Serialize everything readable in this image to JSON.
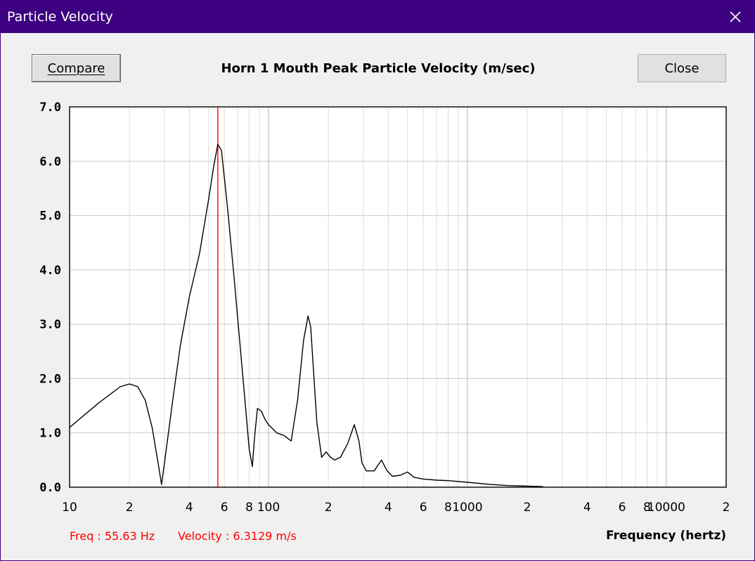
{
  "window": {
    "title": "Particle Velocity",
    "close_icon": "close-icon"
  },
  "toolbar": {
    "compare_label": "Compare",
    "close_label": "Close"
  },
  "readout": {
    "freq": "Freq : 55.63 Hz",
    "velocity": "Velocity : 6.3129 m/s"
  },
  "chart_data": {
    "type": "line",
    "title": "Horn 1 Mouth Peak Particle Velocity (m/sec)",
    "xlabel": "Frequency (hertz)",
    "ylabel": "",
    "x_scale": "log",
    "xlim": [
      10,
      20000
    ],
    "ylim": [
      0,
      7
    ],
    "yticks": [
      0,
      1,
      2,
      3,
      4,
      5,
      6,
      7
    ],
    "ytick_labels": [
      "0.0",
      "1.0",
      "2.0",
      "3.0",
      "4.0",
      "5.0",
      "6.0",
      "7.0"
    ],
    "xticks": [
      10,
      20,
      40,
      60,
      80,
      100,
      200,
      400,
      600,
      800,
      1000,
      2000,
      4000,
      6000,
      8000,
      10000,
      20000
    ],
    "xtick_labels": [
      "10",
      "2",
      "4",
      "6",
      "8",
      "100",
      "2",
      "4",
      "6",
      "8",
      "1000",
      "2",
      "4",
      "6",
      "8",
      "10000",
      "2"
    ],
    "grid": true,
    "cursor_x": 55.63,
    "cursor_color": "#ff0000",
    "line_color": "#000000",
    "series": [
      {
        "x": [
          10,
          14,
          18,
          20,
          22,
          24,
          26,
          28,
          29,
          30,
          33,
          36,
          40,
          45,
          50,
          53,
          55.63,
          58,
          62,
          67,
          72,
          77,
          80,
          83,
          85,
          88,
          92,
          96,
          100,
          110,
          120,
          130,
          140,
          150,
          158,
          163,
          168,
          175,
          185,
          195,
          205,
          215,
          230,
          250,
          270,
          285,
          295,
          310,
          340,
          370,
          395,
          420,
          460,
          500,
          540,
          600,
          700,
          800,
          1000,
          1300,
          1600,
          2000,
          2400
        ],
        "y": [
          1.1,
          1.55,
          1.85,
          1.9,
          1.85,
          1.6,
          1.1,
          0.4,
          0.05,
          0.45,
          1.6,
          2.6,
          3.5,
          4.3,
          5.3,
          5.9,
          6.31,
          6.2,
          5.2,
          3.9,
          2.6,
          1.4,
          0.7,
          0.38,
          0.9,
          1.45,
          1.4,
          1.25,
          1.15,
          1.0,
          0.95,
          0.85,
          1.6,
          2.7,
          3.15,
          2.95,
          2.2,
          1.2,
          0.55,
          0.65,
          0.55,
          0.5,
          0.55,
          0.8,
          1.15,
          0.85,
          0.45,
          0.3,
          0.3,
          0.5,
          0.3,
          0.2,
          0.22,
          0.28,
          0.18,
          0.15,
          0.13,
          0.12,
          0.09,
          0.05,
          0.03,
          0.02,
          0.01
        ]
      }
    ]
  }
}
